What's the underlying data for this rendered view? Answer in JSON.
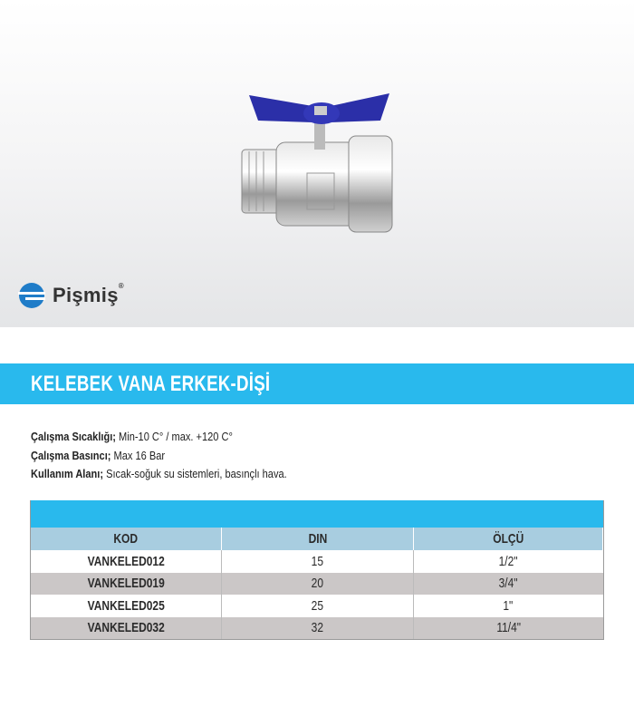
{
  "brand": {
    "name": "Pişmiş",
    "registered": "®"
  },
  "product": {
    "title": "KELEBEK VANA ERKEK-DİŞİ"
  },
  "specs": [
    {
      "label": "Çalışma Sıcaklığı;",
      "value": "Min-10 C° / max. +120 C°"
    },
    {
      "label": "Çalışma Basıncı;",
      "value": "Max 16 Bar"
    },
    {
      "label": "Kullanım Alanı;",
      "value": "Sıcak-soğuk su sistemleri, basınçlı hava."
    }
  ],
  "table": {
    "headers": [
      "KOD",
      "DIN",
      "ÖLÇÜ"
    ],
    "rows": [
      [
        "VANKELED012",
        "15",
        "1/2\""
      ],
      [
        "VANKELED019",
        "20",
        "3/4\""
      ],
      [
        "VANKELED025",
        "25",
        "1\""
      ],
      [
        "VANKELED032",
        "32",
        "11/4\""
      ]
    ]
  },
  "colors": {
    "accent": "#29b9ed",
    "header": "#a8cde0",
    "alt_row": "#cbc7c7",
    "handle": "#2b2fa8"
  }
}
